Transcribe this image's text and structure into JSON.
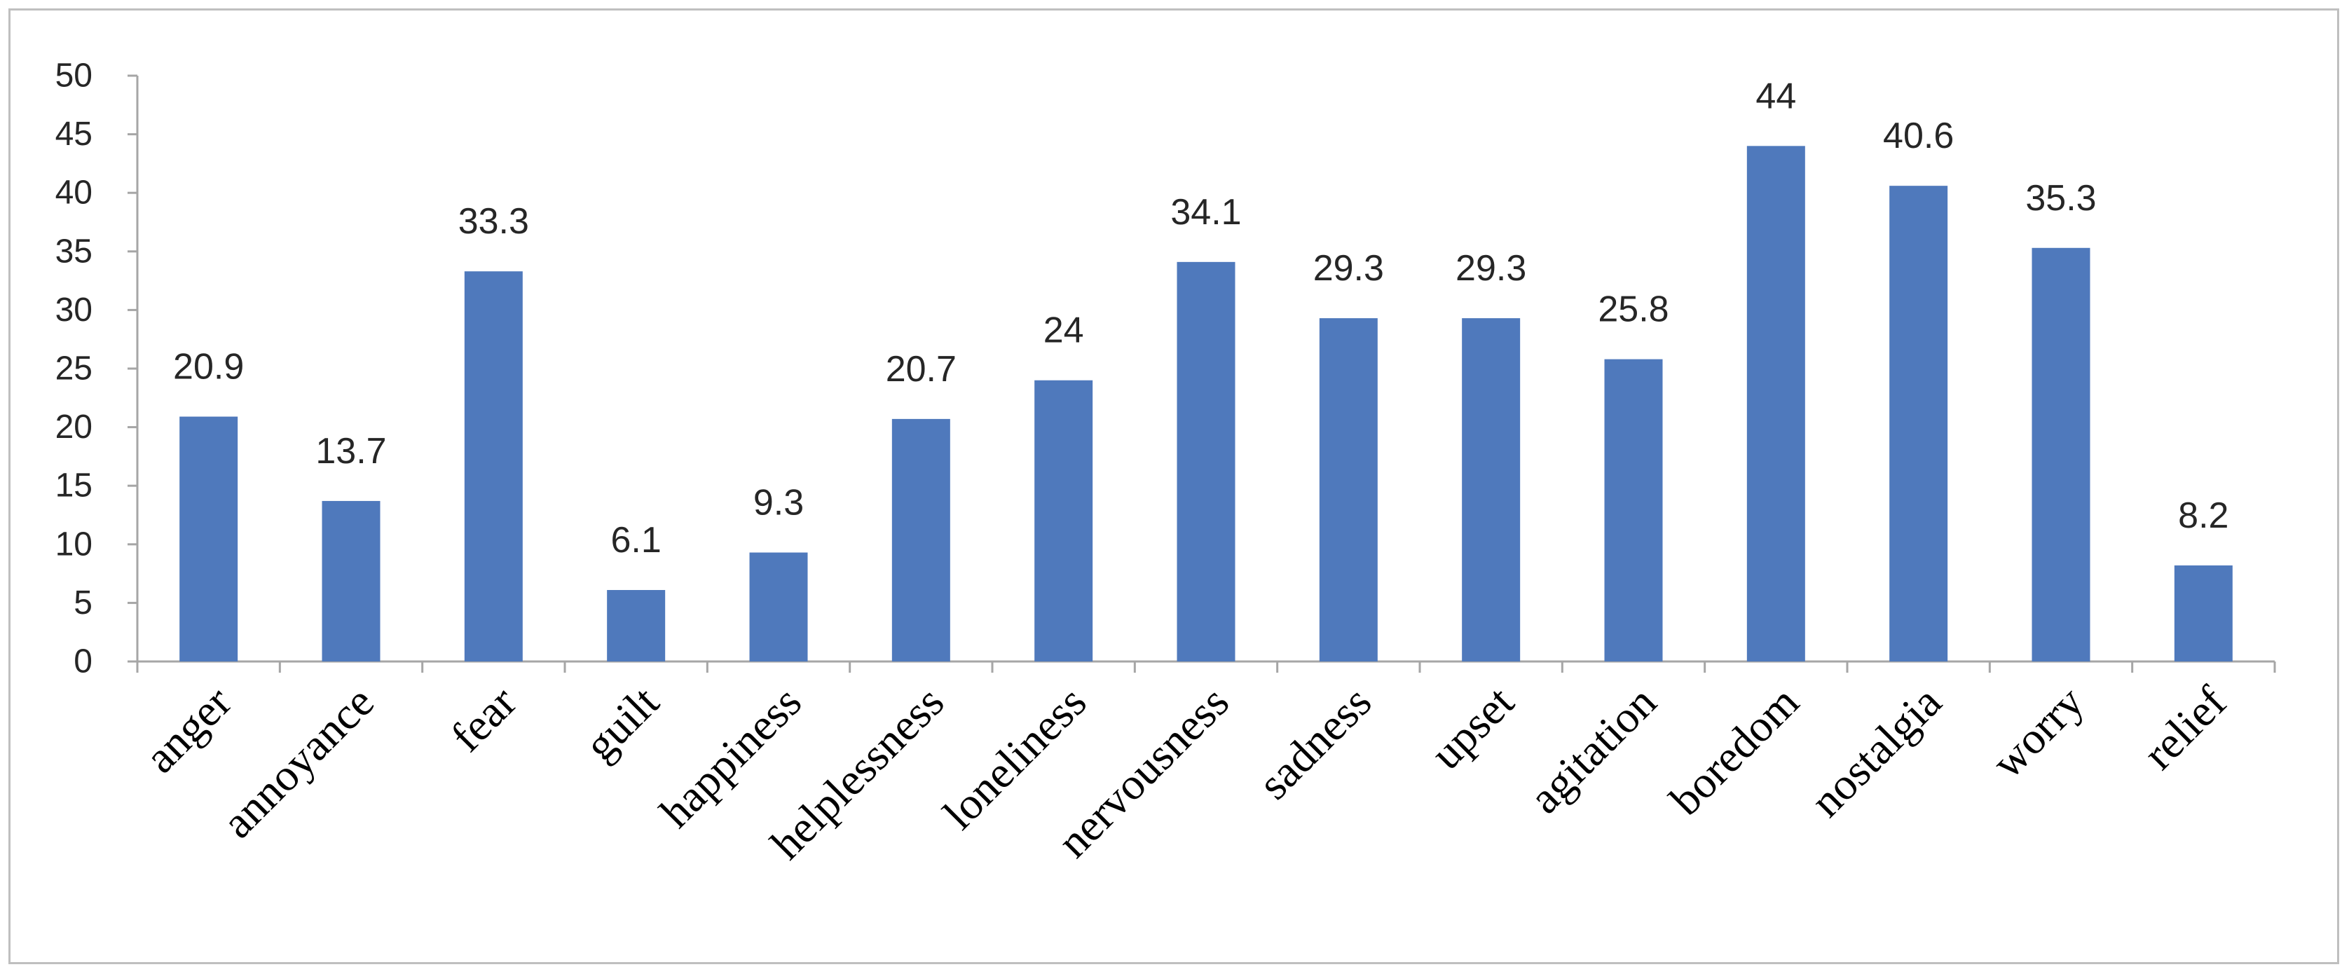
{
  "chart_data": {
    "type": "bar",
    "categories": [
      "anger",
      "annoyance",
      "fear",
      "guilt",
      "happiness",
      "helplessness",
      "loneliness",
      "nervousness",
      "sadness",
      "upset",
      "agitation",
      "boredom",
      "nostalgia",
      "worry",
      "relief"
    ],
    "values": [
      20.9,
      13.7,
      33.3,
      6.1,
      9.3,
      20.7,
      24,
      34.1,
      29.3,
      29.3,
      25.8,
      44,
      40.6,
      35.3,
      8.2
    ],
    "data_labels": [
      "20.9",
      "13.7",
      "33.3",
      "6.1",
      "9.3",
      "20.7",
      "24",
      "34.1",
      "29.3",
      "29.3",
      "25.8",
      "44",
      "40.6",
      "35.3",
      "8.2"
    ],
    "y_ticks": [
      "0",
      "5",
      "10",
      "15",
      "20",
      "25",
      "30",
      "35",
      "40",
      "45",
      "50"
    ],
    "ylim": [
      0,
      50
    ],
    "title": "",
    "xlabel": "",
    "ylabel": "",
    "grid": false,
    "legend": "none",
    "bar_color": "#4f79bc",
    "axis_color": "#a6a6a6",
    "frame_color": "#bfbfbf"
  }
}
